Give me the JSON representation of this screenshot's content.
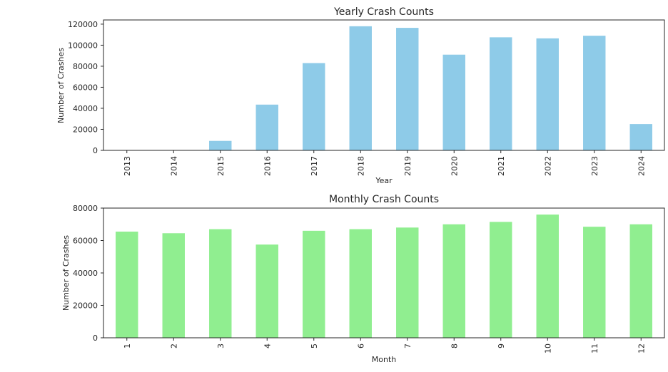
{
  "chart_data": [
    {
      "type": "bar",
      "title": "Yearly Crash Counts",
      "xlabel": "Year",
      "ylabel": "Number of Crashes",
      "categories": [
        "2013",
        "2014",
        "2015",
        "2016",
        "2017",
        "2018",
        "2019",
        "2020",
        "2021",
        "2022",
        "2023",
        "2024"
      ],
      "values": [
        50,
        100,
        9000,
        43500,
        83000,
        118000,
        116500,
        91000,
        107500,
        106500,
        109000,
        25000
      ],
      "ylim": [
        0,
        124000
      ],
      "yticks": [
        0,
        20000,
        40000,
        60000,
        80000,
        100000,
        120000
      ],
      "color": "#8ecbe8",
      "grid": false
    },
    {
      "type": "bar",
      "title": "Monthly Crash Counts",
      "xlabel": "Month",
      "ylabel": "Number of Crashes",
      "categories": [
        "1",
        "2",
        "3",
        "4",
        "5",
        "6",
        "7",
        "8",
        "9",
        "10",
        "11",
        "12"
      ],
      "values": [
        65500,
        64500,
        67000,
        57500,
        66000,
        67000,
        68000,
        70000,
        71500,
        76000,
        68500,
        70000
      ],
      "ylim": [
        0,
        80000
      ],
      "yticks": [
        0,
        20000,
        40000,
        60000,
        80000
      ],
      "color": "#90ee90",
      "grid": false
    }
  ]
}
